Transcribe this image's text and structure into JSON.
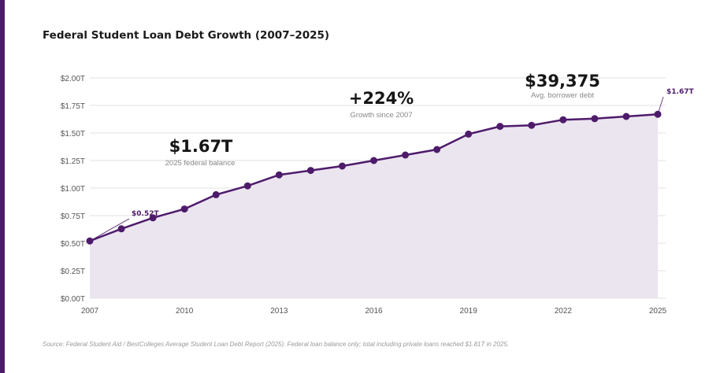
{
  "title": "Federal Student Loan Debt Growth (2007–2025)",
  "source": "Source: Federal Student Aid / BestColleges Average Student Loan Debt Report (2025). Federal loan balance only; total including private loans reached $1.81T in 2025.",
  "colors": {
    "accent": "#4e1b6b",
    "fill": "#ebe5ef",
    "grid": "#ececec"
  },
  "chart_data": {
    "type": "area",
    "x": [
      2007,
      2008,
      2009,
      2010,
      2011,
      2012,
      2013,
      2014,
      2015,
      2016,
      2017,
      2018,
      2019,
      2020,
      2021,
      2022,
      2023,
      2024,
      2025
    ],
    "values": [
      0.52,
      0.63,
      0.73,
      0.81,
      0.94,
      1.02,
      1.12,
      1.16,
      1.2,
      1.25,
      1.3,
      1.35,
      1.49,
      1.56,
      1.57,
      1.62,
      1.63,
      1.65,
      1.67
    ],
    "ylim": [
      0,
      2.0
    ],
    "xlim": [
      2007,
      2025
    ],
    "y_ticks": [
      "$0.00T",
      "$0.25T",
      "$0.50T",
      "$0.75T",
      "$1.00T",
      "$1.25T",
      "$1.50T",
      "$1.75T",
      "$2.00T"
    ],
    "x_ticks": [
      "2007",
      "2010",
      "2013",
      "2016",
      "2019",
      "2022",
      "2025"
    ],
    "grid": true,
    "point_labels": [
      {
        "x": 2007,
        "label": "$0.52T"
      },
      {
        "x": 2025,
        "label": "$1.67T"
      }
    ],
    "callouts": [
      {
        "value": "$1.67T",
        "caption": "2025 federal balance"
      },
      {
        "value": "+224%",
        "caption": "Growth since 2007"
      },
      {
        "value": "$39,375",
        "caption": "Avg. borrower debt"
      }
    ]
  }
}
